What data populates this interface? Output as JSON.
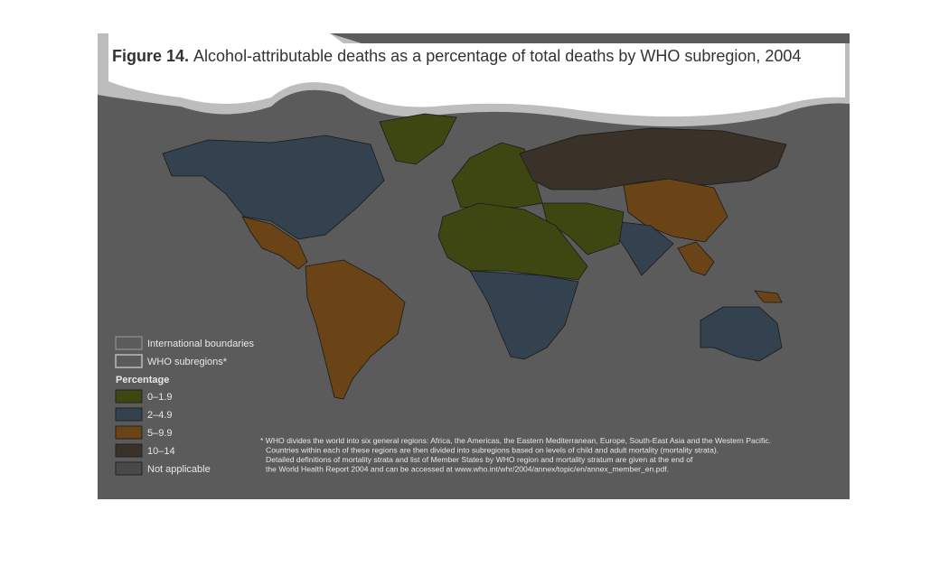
{
  "title": {
    "label": "Figure 14.",
    "text": "Alcohol-attributable deaths as a percentage of total deaths by WHO subregion, 2004"
  },
  "legend": {
    "boundaries": [
      "International boundaries",
      "WHO subregions*"
    ],
    "heading": "Percentage",
    "items": [
      {
        "label": "0–1.9",
        "color": "#3e4711"
      },
      {
        "label": "2–4.9",
        "color": "#34414f"
      },
      {
        "label": "5–9.9",
        "color": "#6a4416"
      },
      {
        "label": "10–14",
        "color": "#3a3128"
      },
      {
        "label": "Not applicable",
        "color": "#494949"
      }
    ]
  },
  "footnote": [
    "* WHO divides the world into six general regions: Africa, the Americas, the Eastern Mediterranean, Europe, South-East Asia and the Western Pacific.",
    "Countries within each of these regions are then divided into subregions based on levels of child and adult mortality (mortality strata).",
    "Detailed definitions of mortality strata and list of Member States by WHO region and mortality stratum are given at the end of",
    "the World Health Report 2004 and can be accessed at www.who.int/whr/2004/annex/topic/en/annex_member_en.pdf."
  ]
}
